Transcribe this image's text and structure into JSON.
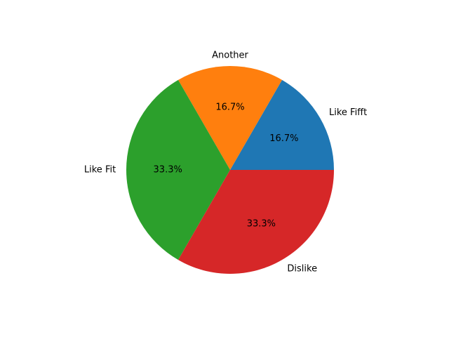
{
  "chart_data": {
    "type": "pie",
    "labels": [
      "Like Fifft",
      "Another",
      "Like Fit",
      "Dislike"
    ],
    "values": [
      1,
      1,
      2,
      2
    ],
    "percent_labels": [
      "16.7%",
      "16.7%",
      "33.3%",
      "33.3%"
    ],
    "colors": [
      "#1f77b4",
      "#ff7f0e",
      "#2ca02c",
      "#d62728"
    ],
    "start_angle_deg": 0,
    "direction": "counterclockwise"
  }
}
